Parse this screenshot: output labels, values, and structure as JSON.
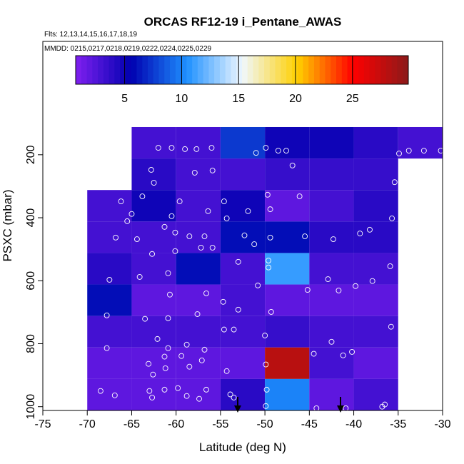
{
  "chart_data": {
    "type": "heatmap",
    "title": "ORCAS RF12-19 i_Pentane_AWAS",
    "subtitle": "Flts: 12,13,14,15,16,17,18,19",
    "annotation": "MMDD: 0215,0217,0218,0219,0222,0224,0225,0229",
    "xlabel": "Latitude (deg N)",
    "ylabel": "PSXC (mbar)",
    "xlim": [
      -75,
      -30
    ],
    "xticks": [
      -75,
      -70,
      -65,
      -60,
      -55,
      -50,
      -45,
      -40,
      -35,
      -30
    ],
    "ylim": [
      1012,
      -160
    ],
    "yticks": [
      200,
      400,
      600,
      800,
      1000
    ],
    "x_bins": [
      -70,
      -65,
      -60,
      -55,
      -50,
      -45,
      -40,
      -35,
      -30
    ],
    "y_bins": [
      112,
      212,
      312,
      412,
      512,
      612,
      712,
      812,
      912,
      1012
    ],
    "z": [
      [
        null,
        3,
        3,
        7.5,
        5,
        5,
        4,
        3
      ],
      [
        null,
        4,
        3,
        3,
        3.5,
        3.5,
        3.5,
        null
      ],
      [
        3,
        5,
        3,
        5,
        2,
        3,
        4,
        null
      ],
      [
        3,
        3,
        3,
        6,
        6,
        4,
        4,
        null
      ],
      [
        4,
        3,
        6,
        3,
        11,
        3,
        3,
        null
      ],
      [
        6,
        2,
        2,
        3,
        2,
        2,
        2,
        null
      ],
      [
        3,
        3,
        3,
        3,
        3.5,
        3,
        3,
        null
      ],
      [
        2,
        2,
        2,
        2,
        28,
        3,
        2,
        null
      ],
      [
        2,
        2,
        2,
        4,
        10,
        2,
        3,
        null
      ]
    ],
    "clim": [
      0.7,
      29.9
    ],
    "cticks": [
      5,
      10,
      15,
      20,
      25
    ],
    "colors": [
      "#8020f0",
      "#0000b0",
      "#1e90ff",
      "#f0f8ff",
      "#ffd000",
      "#ff0000",
      "#8b1a1a"
    ],
    "points": {
      "color": "#ffffff",
      "x": [
        -62.0,
        -60.5,
        -59.0,
        -57.7,
        -56.0,
        -51.0,
        -49.9,
        -48.5,
        -47.6,
        -34.9,
        -33.8,
        -32.1,
        -30.2,
        -62.8,
        -62.5,
        -57.9,
        -55.9,
        -46.9,
        -35.4,
        -63.8,
        -66.2,
        -65.0,
        -61.3,
        -59.6,
        -56.4,
        -54.6,
        -49.7,
        -46.1,
        -49.4,
        -51.9,
        -54.3,
        -60.5,
        -65.5,
        -66.8,
        -64.4,
        -60.1,
        -58.5,
        -56.8,
        -57.2,
        -55.9,
        -52.3,
        -51.2,
        -49.4,
        -45.5,
        -42.3,
        -39.3,
        -38.2,
        -35.7,
        -62.7,
        -60.1,
        -60.9,
        -67.5,
        -64.1,
        -53.0,
        -49.6,
        -49.6,
        -50.8,
        -45.2,
        -42.9,
        -41.7,
        -39.8,
        -37.9,
        -35.9,
        -60.7,
        -56.6,
        -54.7,
        -67.8,
        -63.5,
        -60.9,
        -57.6,
        -53.0,
        -49.3,
        -35.8,
        -54.6,
        -53.5,
        -50.0,
        -42.5,
        -62.1,
        -60.9,
        -58.8,
        -56.8,
        -67.8,
        -61.3,
        -59.4,
        -40.2,
        -44.5,
        -41.2,
        -49.9,
        -54.3,
        -58.5,
        -57.1,
        -63.1,
        -61.2,
        -62.6,
        -68.5,
        -66.9,
        -63.0,
        -62.7,
        -61.3,
        -59.8,
        -58.8,
        -57.4,
        -56.6,
        -53.9,
        -53.5,
        -49.8,
        -49.9,
        -44.2,
        -40.9,
        -36.8,
        -36.5
      ],
      "y": [
        178,
        178,
        182,
        182,
        178,
        194,
        178,
        187,
        187,
        196,
        187,
        187,
        187,
        248,
        289,
        257,
        250,
        234,
        287,
        332,
        348,
        388,
        429,
        348,
        379,
        348,
        327,
        332,
        373,
        379,
        402,
        395,
        411,
        463,
        468,
        447,
        459,
        459,
        495,
        495,
        456,
        484,
        463,
        459,
        468,
        450,
        438,
        402,
        515,
        506,
        576,
        597,
        588,
        540,
        536,
        558,
        615,
        629,
        595,
        631,
        617,
        601,
        554,
        644,
        640,
        667,
        710,
        721,
        719,
        706,
        692,
        699,
        746,
        755,
        755,
        774,
        794,
        785,
        814,
        803,
        819,
        814,
        841,
        839,
        826,
        832,
        837,
        866,
        887,
        873,
        853,
        864,
        878,
        898,
        950,
        964,
        950,
        971,
        946,
        941,
        966,
        975,
        946,
        961,
        971,
        946,
        998,
        1005,
        1005,
        1000,
        993
      ]
    }
  }
}
